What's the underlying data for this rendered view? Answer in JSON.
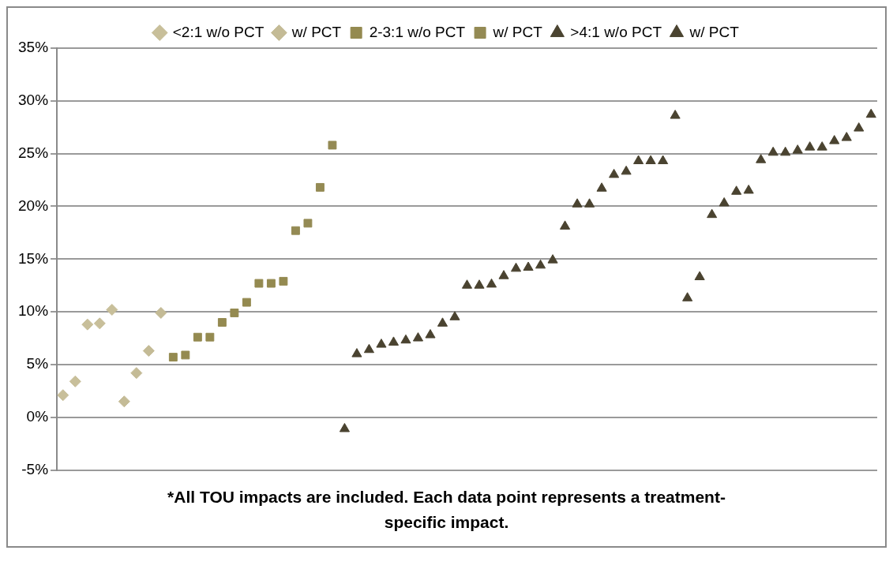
{
  "chart_data": {
    "type": "scatter",
    "categories": [
      null,
      null,
      null,
      null,
      null,
      null,
      null,
      null,
      null,
      null,
      null,
      null,
      null,
      null,
      null,
      null,
      null,
      null,
      null,
      null,
      null,
      null,
      null,
      null,
      null,
      null,
      null,
      null,
      null,
      null,
      null,
      null,
      null,
      null,
      null,
      null,
      null,
      null,
      null,
      null,
      null,
      null,
      null,
      null,
      null,
      null,
      null,
      null,
      null,
      null,
      null,
      null,
      null,
      null,
      null,
      null,
      null,
      null,
      null,
      null,
      null,
      null,
      null,
      null,
      null,
      null,
      null
    ],
    "series": [
      {
        "name": "<2:1 w/o PCT",
        "color": "#c8bf9a",
        "marker": "diamond",
        "values": [
          2.1,
          3.4,
          8.8,
          8.9,
          10.2,
          null,
          null,
          null,
          null,
          null,
          null,
          null,
          null,
          null,
          null,
          null,
          null,
          null,
          null,
          null,
          null,
          null,
          null,
          null,
          null,
          null,
          null,
          null,
          null,
          null,
          null,
          null,
          null,
          null,
          null,
          null,
          null,
          null,
          null,
          null,
          null,
          null,
          null,
          null,
          null,
          null,
          null,
          null,
          null,
          null,
          null,
          null,
          null,
          null,
          null,
          null,
          null,
          null,
          null,
          null,
          null,
          null,
          null,
          null,
          null,
          null,
          null
        ]
      },
      {
        "name": "w/ PCT",
        "color": "#c4bb96",
        "marker": "diamond",
        "values": [
          null,
          null,
          null,
          null,
          null,
          1.5,
          4.2,
          6.3,
          9.9,
          null,
          null,
          null,
          null,
          null,
          null,
          null,
          null,
          null,
          null,
          null,
          null,
          null,
          null,
          null,
          null,
          null,
          null,
          null,
          null,
          null,
          null,
          null,
          null,
          null,
          null,
          null,
          null,
          null,
          null,
          null,
          null,
          null,
          null,
          null,
          null,
          null,
          null,
          null,
          null,
          null,
          null,
          null,
          null,
          null,
          null,
          null,
          null,
          null,
          null,
          null,
          null,
          null,
          null,
          null,
          null,
          null,
          null
        ]
      },
      {
        "name": "2-3:1 w/o PCT",
        "color": "#948a50",
        "marker": "square",
        "values": [
          null,
          null,
          null,
          null,
          null,
          null,
          null,
          null,
          null,
          5.7,
          5.9,
          7.6,
          7.6,
          9.0,
          9.9,
          10.9,
          12.7,
          12.7,
          12.9,
          null,
          null,
          null,
          null,
          null,
          null,
          null,
          null,
          null,
          null,
          null,
          null,
          null,
          null,
          null,
          null,
          null,
          null,
          null,
          null,
          null,
          null,
          null,
          null,
          null,
          null,
          null,
          null,
          null,
          null,
          null,
          null,
          null,
          null,
          null,
          null,
          null,
          null,
          null,
          null,
          null,
          null,
          null,
          null,
          null,
          null,
          null,
          null
        ]
      },
      {
        "name": "w/ PCT",
        "color": "#948a54",
        "marker": "square",
        "values": [
          null,
          null,
          null,
          null,
          null,
          null,
          null,
          null,
          null,
          null,
          null,
          null,
          null,
          null,
          null,
          null,
          null,
          null,
          null,
          17.7,
          18.4,
          21.8,
          25.8,
          null,
          null,
          null,
          null,
          null,
          null,
          null,
          null,
          null,
          null,
          null,
          null,
          null,
          null,
          null,
          null,
          null,
          null,
          null,
          null,
          null,
          null,
          null,
          null,
          null,
          null,
          null,
          null,
          null,
          null,
          null,
          null,
          null,
          null,
          null,
          null,
          null,
          null,
          null,
          null,
          null,
          null,
          null,
          null
        ]
      },
      {
        "name": ">4:1 w/o PCT",
        "color": "#4a4330",
        "marker": "triangle",
        "values": [
          null,
          null,
          null,
          null,
          null,
          null,
          null,
          null,
          null,
          null,
          null,
          null,
          null,
          null,
          null,
          null,
          null,
          null,
          null,
          null,
          null,
          null,
          null,
          -1.1,
          6.0,
          6.4,
          6.9,
          7.1,
          7.3,
          7.5,
          7.8,
          8.9,
          9.5,
          12.5,
          12.5,
          12.6,
          13.4,
          14.1,
          14.2,
          14.4,
          14.9,
          18.1,
          20.2,
          20.2,
          21.7,
          23.0,
          23.3,
          24.3,
          24.3,
          24.3,
          28.6,
          null,
          null,
          null,
          null,
          null,
          null,
          null,
          null,
          null,
          null,
          null,
          null,
          null,
          null,
          null,
          null
        ]
      },
      {
        "name": "w/ PCT",
        "color": "#4a4330",
        "marker": "triangle",
        "values": [
          null,
          null,
          null,
          null,
          null,
          null,
          null,
          null,
          null,
          null,
          null,
          null,
          null,
          null,
          null,
          null,
          null,
          null,
          null,
          null,
          null,
          null,
          null,
          null,
          null,
          null,
          null,
          null,
          null,
          null,
          null,
          null,
          null,
          null,
          null,
          null,
          null,
          null,
          null,
          null,
          null,
          null,
          null,
          null,
          null,
          null,
          null,
          null,
          null,
          null,
          null,
          11.3,
          13.3,
          19.2,
          20.3,
          21.4,
          21.5,
          24.4,
          25.1,
          25.1,
          25.3,
          25.6,
          25.6,
          26.2,
          26.5,
          27.4,
          28.7
        ]
      }
    ],
    "ylim": [
      -5,
      35
    ],
    "yticks": [
      {
        "value": -5,
        "label": "-5%"
      },
      {
        "value": 0,
        "label": "0%"
      },
      {
        "value": 5,
        "label": "5%"
      },
      {
        "value": 10,
        "label": "10%"
      },
      {
        "value": 15,
        "label": "15%"
      },
      {
        "value": 20,
        "label": "20%"
      },
      {
        "value": 25,
        "label": "25%"
      },
      {
        "value": 30,
        "label": "30%"
      },
      {
        "value": 35,
        "label": "35%"
      }
    ],
    "grid": "y",
    "legend": "top",
    "annotations": [
      "*All TOU impacts are included.  Each data point represents a treatment-specific impact."
    ]
  }
}
